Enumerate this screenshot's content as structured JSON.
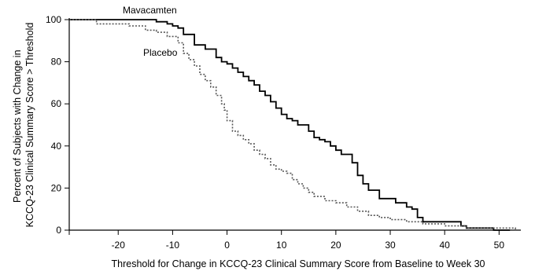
{
  "chart_data": {
    "type": "line",
    "xlabel": "Threshold for Change in KCCQ-23 Clinical Summary Score from Baseline to Week 30",
    "ylabel_lines": [
      "Percent of Subjects with Change in",
      "KCCQ-23 Clinical Summary Score > Threshold"
    ],
    "xlim": [
      -29,
      54
    ],
    "ylim": [
      0,
      100
    ],
    "x_ticks": [
      -20,
      -10,
      0,
      10,
      20,
      30,
      40,
      50
    ],
    "x_ticks_unlabeled": [
      -30
    ],
    "y_ticks": [
      0,
      20,
      40,
      60,
      80,
      100
    ],
    "grid": false,
    "legend": "inline labels",
    "series": [
      {
        "name": "Mavacamten",
        "style": "solid",
        "color": "#000000",
        "x": [
          -29,
          -13,
          -11,
          -10,
          -9,
          -8,
          -6,
          -4,
          -2,
          -1,
          0,
          1,
          2,
          3,
          4,
          5,
          6,
          7,
          8,
          9,
          10,
          11,
          12,
          13,
          15,
          16,
          17,
          18,
          19,
          20,
          21,
          23,
          24,
          25,
          26,
          28,
          31,
          33,
          34,
          35,
          36,
          43,
          44,
          49,
          52
        ],
        "y": [
          100,
          99,
          98,
          97,
          96,
          93,
          88,
          86,
          82,
          80,
          79,
          77,
          75,
          73,
          71,
          69,
          66,
          64,
          61,
          58,
          55,
          53,
          52,
          50,
          47,
          44,
          43,
          42,
          40,
          38,
          36,
          32,
          26,
          22,
          19,
          15,
          13,
          11,
          10,
          6,
          4,
          2,
          1,
          0,
          0
        ]
      },
      {
        "name": "Placebo",
        "style": "dotted",
        "color": "#555555",
        "x": [
          -29,
          -24,
          -18,
          -15,
          -13,
          -11,
          -9,
          -8,
          -7,
          -6,
          -5,
          -4,
          -3,
          -2,
          -1,
          -0.5,
          0,
          1,
          2,
          3,
          4,
          5,
          6,
          7,
          8,
          9,
          10,
          11,
          12,
          13,
          14,
          15,
          16,
          18,
          20,
          22,
          24,
          26,
          28,
          30,
          33,
          36,
          40,
          44,
          48,
          53
        ],
        "y": [
          100,
          98,
          97,
          95,
          94,
          92,
          89,
          84,
          81,
          78,
          74,
          71,
          68,
          64,
          60,
          57,
          52,
          47,
          45,
          43,
          41,
          38,
          36,
          34,
          31,
          29,
          28,
          27,
          24,
          22,
          20,
          18,
          16,
          14,
          13,
          11,
          9,
          7,
          6,
          5,
          4,
          3,
          2,
          1,
          1,
          0
        ]
      }
    ]
  }
}
